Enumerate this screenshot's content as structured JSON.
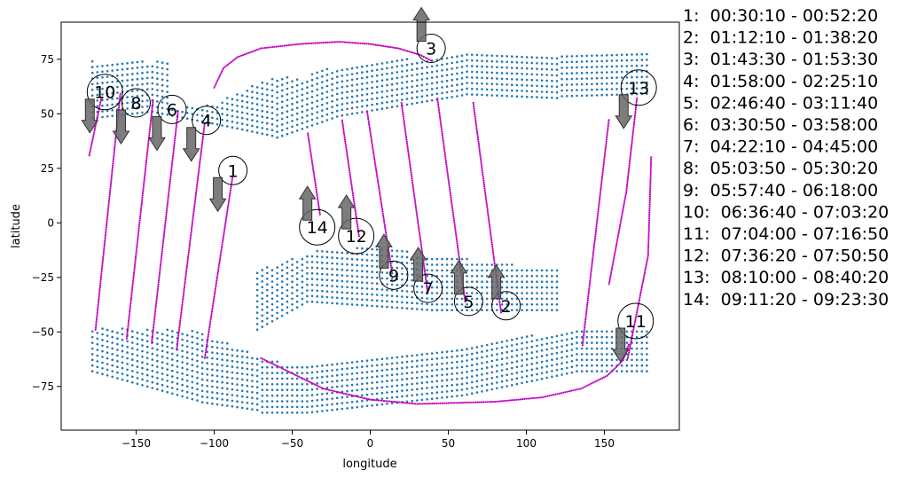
{
  "chart_data": {
    "type": "scatter",
    "xlabel": "longitude",
    "ylabel": "latitude",
    "xlim": [
      -198,
      198
    ],
    "ylim": [
      -95,
      92
    ],
    "xticks": [
      -150,
      -100,
      -50,
      0,
      50,
      100,
      150
    ],
    "yticks": [
      -75,
      -50,
      -25,
      0,
      25,
      50,
      75
    ],
    "colors": {
      "coverage": "#1f77b4",
      "track": "#c000c0",
      "arrow": "#666666"
    },
    "tracks": [
      {
        "id": "1",
        "points": [
          [
            -106,
            -62
          ],
          [
            -88,
            22
          ]
        ]
      },
      {
        "id": "2",
        "points": [
          [
            66,
            55
          ],
          [
            84,
            -42
          ]
        ]
      },
      {
        "id": "3",
        "points": [
          [
            -100,
            62
          ],
          [
            -94,
            71
          ],
          [
            -85,
            76
          ],
          [
            -70,
            80
          ],
          [
            -45,
            82
          ],
          [
            -20,
            83
          ],
          [
            0,
            82
          ],
          [
            18,
            80
          ],
          [
            32,
            77
          ],
          [
            40,
            74
          ]
        ]
      },
      {
        "id": "4",
        "points": [
          [
            -124,
            -58
          ],
          [
            -106,
            46
          ]
        ]
      },
      {
        "id": "5",
        "points": [
          [
            43,
            57
          ],
          [
            61,
            -37
          ]
        ]
      },
      {
        "id": "6",
        "points": [
          [
            -140,
            -55
          ],
          [
            -123,
            52
          ]
        ]
      },
      {
        "id": "7",
        "points": [
          [
            20,
            55
          ],
          [
            37,
            -33
          ]
        ]
      },
      {
        "id": "8",
        "points": [
          [
            -156,
            -53
          ],
          [
            -139,
            57
          ]
        ]
      },
      {
        "id": "9",
        "points": [
          [
            -2,
            51
          ],
          [
            14,
            -23
          ]
        ]
      },
      {
        "id": "10",
        "points": [
          [
            -180,
            31
          ],
          [
            -172,
            58
          ]
        ]
      },
      {
        "id": "10b",
        "points": [
          [
            -176,
            -49
          ],
          [
            -160,
            60
          ]
        ]
      },
      {
        "id": "11",
        "points": [
          [
            136,
            -56
          ],
          [
            153,
            48
          ]
        ]
      },
      {
        "id": "11b",
        "points": [
          [
            -70,
            -62
          ],
          [
            -30,
            -76
          ],
          [
            0,
            -81
          ],
          [
            30,
            -83
          ],
          [
            80,
            -82
          ],
          [
            110,
            -80
          ],
          [
            135,
            -76
          ],
          [
            152,
            -70
          ],
          [
            162,
            -63
          ],
          [
            166,
            -55
          ]
        ]
      },
      {
        "id": "12",
        "points": [
          [
            -18,
            47
          ],
          [
            -7,
            -7
          ]
        ]
      },
      {
        "id": "13",
        "points": [
          [
            165,
            -62
          ],
          [
            178,
            -15
          ],
          [
            180,
            31
          ]
        ]
      },
      {
        "id": "13b",
        "points": [
          [
            153,
            -28
          ],
          [
            164,
            14
          ],
          [
            171,
            58
          ]
        ]
      },
      {
        "id": "14",
        "points": [
          [
            -40,
            41
          ],
          [
            -32,
            3
          ]
        ]
      }
    ],
    "annotations": [
      {
        "label": "1",
        "x": -88,
        "y": 24,
        "arrow": "down"
      },
      {
        "label": "2",
        "x": 87,
        "y": -38,
        "arrow": "up"
      },
      {
        "label": "3",
        "x": 39,
        "y": 80,
        "arrow": "up"
      },
      {
        "label": "4",
        "x": -105,
        "y": 47,
        "arrow": "down"
      },
      {
        "label": "5",
        "x": 63,
        "y": -36,
        "arrow": "up"
      },
      {
        "label": "6",
        "x": -127,
        "y": 52,
        "arrow": "down"
      },
      {
        "label": "7",
        "x": 37,
        "y": -30,
        "arrow": "up"
      },
      {
        "label": "8",
        "x": -150,
        "y": 55,
        "arrow": "down"
      },
      {
        "label": "9",
        "x": 15,
        "y": -24,
        "arrow": "up"
      },
      {
        "label": "10",
        "x": -170,
        "y": 60,
        "arrow": "down"
      },
      {
        "label": "11",
        "x": 170,
        "y": -45,
        "arrow": "down"
      },
      {
        "label": "12",
        "x": -9,
        "y": -6,
        "arrow": "up"
      },
      {
        "label": "13",
        "x": 172,
        "y": 62,
        "arrow": "down"
      },
      {
        "label": "14",
        "x": -34,
        "y": -2,
        "arrow": "up"
      }
    ],
    "legend": [
      "1:  00:30:10 - 00:52:20",
      "2:  01:12:10 - 01:38:20",
      "3:  01:43:30 - 01:53:30",
      "4:  01:58:00 - 02:25:10",
      "5:  02:46:40 - 03:11:40",
      "6:  03:30:50 - 03:58:00",
      "7:  04:22:10 - 04:45:00",
      "8:  05:03:50 - 05:30:20",
      "9:  05:57:40 - 06:18:00",
      "10:  06:36:40 - 07:03:20",
      "11:  07:04:00 - 07:16:50",
      "12:  07:36:20 - 07:50:50",
      "13:  08:10:00 - 08:40:20",
      "14:  09:11:20 - 09:23:30"
    ],
    "legend_position": "right"
  }
}
